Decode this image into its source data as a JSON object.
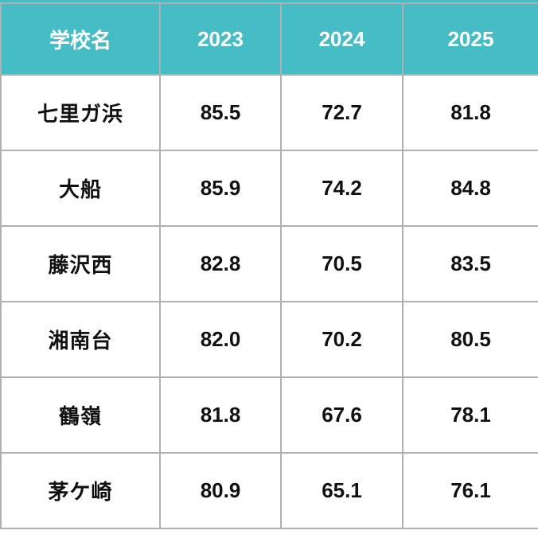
{
  "colors": {
    "header_bg": "#46BCC5",
    "header_text": "#FFFFFF",
    "border": "#B0B0B0",
    "cell_text": "#111111"
  },
  "table": {
    "columns": [
      {
        "label": "学校名"
      },
      {
        "label": "2023"
      },
      {
        "label": "2024"
      },
      {
        "label": "2025"
      }
    ],
    "rows": [
      {
        "school": "七里ガ浜",
        "v2023": "85.5",
        "v2024": "72.7",
        "v2025": "81.8"
      },
      {
        "school": "大船",
        "v2023": "85.9",
        "v2024": "74.2",
        "v2025": "84.8"
      },
      {
        "school": "藤沢西",
        "v2023": "82.8",
        "v2024": "70.5",
        "v2025": "83.5"
      },
      {
        "school": "湘南台",
        "v2023": "82.0",
        "v2024": "70.2",
        "v2025": "80.5"
      },
      {
        "school": "鶴嶺",
        "v2023": "81.8",
        "v2024": "67.6",
        "v2025": "78.1"
      },
      {
        "school": "茅ケ崎",
        "v2023": "80.9",
        "v2024": "65.1",
        "v2025": "76.1"
      }
    ]
  },
  "chart_data": {
    "type": "table",
    "title": "",
    "row_header_label": "学校名",
    "categories": [
      "2023",
      "2024",
      "2025"
    ],
    "series": [
      {
        "name": "七里ガ浜",
        "values": [
          85.5,
          72.7,
          81.8
        ]
      },
      {
        "name": "大船",
        "values": [
          85.9,
          74.2,
          84.8
        ]
      },
      {
        "name": "藤沢西",
        "values": [
          82.8,
          70.5,
          83.5
        ]
      },
      {
        "name": "湘南台",
        "values": [
          82.0,
          70.2,
          80.5
        ]
      },
      {
        "name": "鶴嶺",
        "values": [
          81.8,
          67.6,
          78.1
        ]
      },
      {
        "name": "茅ケ崎",
        "values": [
          80.9,
          65.1,
          76.1
        ]
      }
    ]
  }
}
